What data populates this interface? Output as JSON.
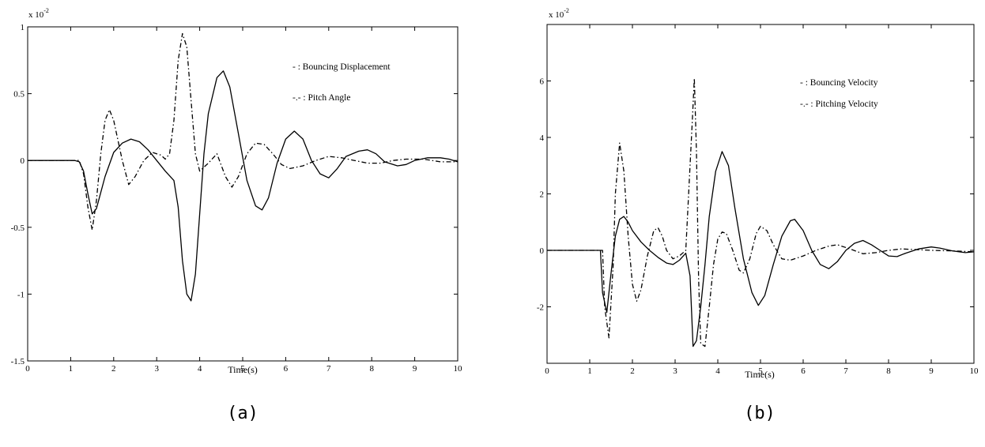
{
  "chart_data": [
    {
      "type": "line",
      "caption": "(a)",
      "xlabel": "Time(s)",
      "ylabel": "",
      "y_multiplier": "x 10",
      "y_multiplier_exp": "-2",
      "xlim": [
        0,
        10
      ],
      "ylim": [
        -1.5,
        1
      ],
      "xticks": [
        0,
        1,
        2,
        3,
        4,
        5,
        6,
        7,
        8,
        9,
        10
      ],
      "xtick_labels": [
        "0",
        "1",
        "2",
        "3",
        "4",
        "5",
        "6",
        "7",
        "8",
        "9",
        "10"
      ],
      "yticks": [
        -1.5,
        -1,
        -0.5,
        0,
        0.5,
        1
      ],
      "ytick_labels": [
        "-1.5",
        "-1",
        "-0.5",
        "0",
        "0.5",
        "1"
      ],
      "grid": false,
      "legend_position": "top-right",
      "series": [
        {
          "name": "- : Bouncing Displacement",
          "style": "solid",
          "points": [
            [
              0,
              0
            ],
            [
              1.1,
              0
            ],
            [
              1.2,
              -0.01
            ],
            [
              1.3,
              -0.08
            ],
            [
              1.4,
              -0.25
            ],
            [
              1.5,
              -0.4
            ],
            [
              1.6,
              -0.36
            ],
            [
              1.8,
              -0.12
            ],
            [
              2.0,
              0.06
            ],
            [
              2.2,
              0.13
            ],
            [
              2.4,
              0.16
            ],
            [
              2.6,
              0.14
            ],
            [
              2.8,
              0.08
            ],
            [
              3.0,
              0.0
            ],
            [
              3.2,
              -0.08
            ],
            [
              3.4,
              -0.15
            ],
            [
              3.5,
              -0.35
            ],
            [
              3.6,
              -0.75
            ],
            [
              3.7,
              -1.0
            ],
            [
              3.8,
              -1.05
            ],
            [
              3.9,
              -0.85
            ],
            [
              4.0,
              -0.4
            ],
            [
              4.1,
              0.05
            ],
            [
              4.2,
              0.35
            ],
            [
              4.4,
              0.62
            ],
            [
              4.55,
              0.67
            ],
            [
              4.7,
              0.55
            ],
            [
              4.9,
              0.2
            ],
            [
              5.1,
              -0.15
            ],
            [
              5.3,
              -0.34
            ],
            [
              5.45,
              -0.37
            ],
            [
              5.6,
              -0.28
            ],
            [
              5.8,
              -0.02
            ],
            [
              6.0,
              0.16
            ],
            [
              6.2,
              0.22
            ],
            [
              6.4,
              0.16
            ],
            [
              6.6,
              0.0
            ],
            [
              6.8,
              -0.1
            ],
            [
              7.0,
              -0.13
            ],
            [
              7.2,
              -0.06
            ],
            [
              7.4,
              0.03
            ],
            [
              7.7,
              0.07
            ],
            [
              7.9,
              0.08
            ],
            [
              8.1,
              0.05
            ],
            [
              8.3,
              -0.01
            ],
            [
              8.6,
              -0.04
            ],
            [
              8.8,
              -0.03
            ],
            [
              9.0,
              0.0
            ],
            [
              9.3,
              0.02
            ],
            [
              9.6,
              0.02
            ],
            [
              9.8,
              0.01
            ],
            [
              10,
              -0.01
            ]
          ]
        },
        {
          "name": "-.- : Pitch Angle",
          "style": "dashdot",
          "points": [
            [
              0,
              0
            ],
            [
              1.2,
              0
            ],
            [
              1.3,
              -0.1
            ],
            [
              1.4,
              -0.35
            ],
            [
              1.5,
              -0.52
            ],
            [
              1.6,
              -0.3
            ],
            [
              1.7,
              0.05
            ],
            [
              1.8,
              0.3
            ],
            [
              1.9,
              0.38
            ],
            [
              2.0,
              0.3
            ],
            [
              2.2,
              0.0
            ],
            [
              2.35,
              -0.18
            ],
            [
              2.5,
              -0.12
            ],
            [
              2.7,
              0.0
            ],
            [
              2.9,
              0.06
            ],
            [
              3.1,
              0.04
            ],
            [
              3.2,
              0.01
            ],
            [
              3.3,
              0.05
            ],
            [
              3.4,
              0.3
            ],
            [
              3.5,
              0.75
            ],
            [
              3.6,
              0.95
            ],
            [
              3.7,
              0.85
            ],
            [
              3.8,
              0.45
            ],
            [
              3.9,
              0.05
            ],
            [
              4.0,
              -0.08
            ],
            [
              4.2,
              -0.02
            ],
            [
              4.4,
              0.05
            ],
            [
              4.6,
              -0.12
            ],
            [
              4.75,
              -0.2
            ],
            [
              4.9,
              -0.12
            ],
            [
              5.1,
              0.05
            ],
            [
              5.3,
              0.13
            ],
            [
              5.5,
              0.12
            ],
            [
              5.7,
              0.05
            ],
            [
              5.9,
              -0.03
            ],
            [
              6.1,
              -0.06
            ],
            [
              6.4,
              -0.04
            ],
            [
              6.7,
              0.0
            ],
            [
              7.0,
              0.03
            ],
            [
              7.3,
              0.02
            ],
            [
              7.6,
              0.0
            ],
            [
              7.9,
              -0.02
            ],
            [
              8.2,
              -0.02
            ],
            [
              8.5,
              0.0
            ],
            [
              8.8,
              0.01
            ],
            [
              9.2,
              0.01
            ],
            [
              9.6,
              -0.01
            ],
            [
              10,
              -0.01
            ]
          ]
        }
      ]
    },
    {
      "type": "line",
      "caption": "(b)",
      "xlabel": "Time(s)",
      "ylabel": "",
      "y_multiplier": "x 10",
      "y_multiplier_exp": "-2",
      "xlim": [
        0,
        10
      ],
      "ylim": [
        -4,
        8
      ],
      "xticks": [
        0,
        1,
        2,
        3,
        4,
        5,
        6,
        7,
        8,
        9,
        10
      ],
      "xtick_labels": [
        "0",
        "1",
        "2",
        "3",
        "4",
        "5",
        "6",
        "7",
        "8",
        "9",
        "10"
      ],
      "yticks": [
        -2,
        0,
        2,
        4,
        6
      ],
      "ytick_labels": [
        "-2",
        "0",
        "2",
        "4",
        "6"
      ],
      "grid": false,
      "legend_position": "top-right",
      "series": [
        {
          "name": "- : Bouncing Velocity",
          "style": "solid",
          "points": [
            [
              0,
              0
            ],
            [
              1.25,
              0
            ],
            [
              1.3,
              -1.5
            ],
            [
              1.4,
              -2.2
            ],
            [
              1.5,
              -0.8
            ],
            [
              1.6,
              0.5
            ],
            [
              1.7,
              1.1
            ],
            [
              1.8,
              1.2
            ],
            [
              1.9,
              1.0
            ],
            [
              2.0,
              0.7
            ],
            [
              2.2,
              0.3
            ],
            [
              2.4,
              0.0
            ],
            [
              2.6,
              -0.25
            ],
            [
              2.8,
              -0.45
            ],
            [
              2.95,
              -0.5
            ],
            [
              3.1,
              -0.35
            ],
            [
              3.25,
              -0.1
            ],
            [
              3.35,
              -0.9
            ],
            [
              3.42,
              -3.4
            ],
            [
              3.5,
              -3.2
            ],
            [
              3.6,
              -2.0
            ],
            [
              3.7,
              -0.5
            ],
            [
              3.8,
              1.2
            ],
            [
              3.95,
              2.8
            ],
            [
              4.1,
              3.5
            ],
            [
              4.25,
              3.0
            ],
            [
              4.4,
              1.5
            ],
            [
              4.6,
              -0.3
            ],
            [
              4.8,
              -1.5
            ],
            [
              4.95,
              -1.95
            ],
            [
              5.1,
              -1.6
            ],
            [
              5.3,
              -0.5
            ],
            [
              5.5,
              0.5
            ],
            [
              5.7,
              1.05
            ],
            [
              5.8,
              1.1
            ],
            [
              6.0,
              0.7
            ],
            [
              6.2,
              0.0
            ],
            [
              6.4,
              -0.5
            ],
            [
              6.6,
              -0.65
            ],
            [
              6.8,
              -0.4
            ],
            [
              7.0,
              0.0
            ],
            [
              7.2,
              0.25
            ],
            [
              7.4,
              0.35
            ],
            [
              7.6,
              0.2
            ],
            [
              7.8,
              0.0
            ],
            [
              8.0,
              -0.2
            ],
            [
              8.2,
              -0.22
            ],
            [
              8.4,
              -0.1
            ],
            [
              8.7,
              0.05
            ],
            [
              9.0,
              0.12
            ],
            [
              9.2,
              0.08
            ],
            [
              9.5,
              -0.02
            ],
            [
              9.8,
              -0.08
            ],
            [
              10,
              -0.05
            ]
          ]
        },
        {
          "name": "-.- : Pitching Velocity",
          "style": "dashdot",
          "points": [
            [
              0,
              0
            ],
            [
              1.3,
              0
            ],
            [
              1.35,
              -2.0
            ],
            [
              1.45,
              -3.1
            ],
            [
              1.55,
              -0.5
            ],
            [
              1.6,
              2.0
            ],
            [
              1.7,
              3.8
            ],
            [
              1.8,
              2.8
            ],
            [
              1.9,
              0.5
            ],
            [
              2.0,
              -1.2
            ],
            [
              2.1,
              -1.8
            ],
            [
              2.2,
              -1.4
            ],
            [
              2.35,
              -0.2
            ],
            [
              2.5,
              0.7
            ],
            [
              2.6,
              0.8
            ],
            [
              2.7,
              0.5
            ],
            [
              2.8,
              0.0
            ],
            [
              2.95,
              -0.3
            ],
            [
              3.1,
              -0.2
            ],
            [
              3.25,
              0.0
            ],
            [
              3.3,
              1.5
            ],
            [
              3.4,
              4.5
            ],
            [
              3.45,
              6.1
            ],
            [
              3.5,
              3.5
            ],
            [
              3.55,
              -1.0
            ],
            [
              3.6,
              -3.3
            ],
            [
              3.7,
              -3.4
            ],
            [
              3.8,
              -2.0
            ],
            [
              3.9,
              -0.5
            ],
            [
              4.0,
              0.4
            ],
            [
              4.1,
              0.65
            ],
            [
              4.2,
              0.6
            ],
            [
              4.35,
              0.0
            ],
            [
              4.5,
              -0.7
            ],
            [
              4.6,
              -0.8
            ],
            [
              4.75,
              -0.3
            ],
            [
              4.9,
              0.6
            ],
            [
              5.0,
              0.85
            ],
            [
              5.15,
              0.7
            ],
            [
              5.3,
              0.2
            ],
            [
              5.5,
              -0.3
            ],
            [
              5.7,
              -0.35
            ],
            [
              6.0,
              -0.2
            ],
            [
              6.3,
              0.0
            ],
            [
              6.6,
              0.15
            ],
            [
              6.8,
              0.2
            ],
            [
              7.1,
              0.05
            ],
            [
              7.4,
              -0.12
            ],
            [
              7.7,
              -0.08
            ],
            [
              8.0,
              0.0
            ],
            [
              8.3,
              0.05
            ],
            [
              8.6,
              0.03
            ],
            [
              9.0,
              0.0
            ],
            [
              9.5,
              -0.02
            ],
            [
              10,
              -0.05
            ]
          ]
        }
      ]
    }
  ]
}
